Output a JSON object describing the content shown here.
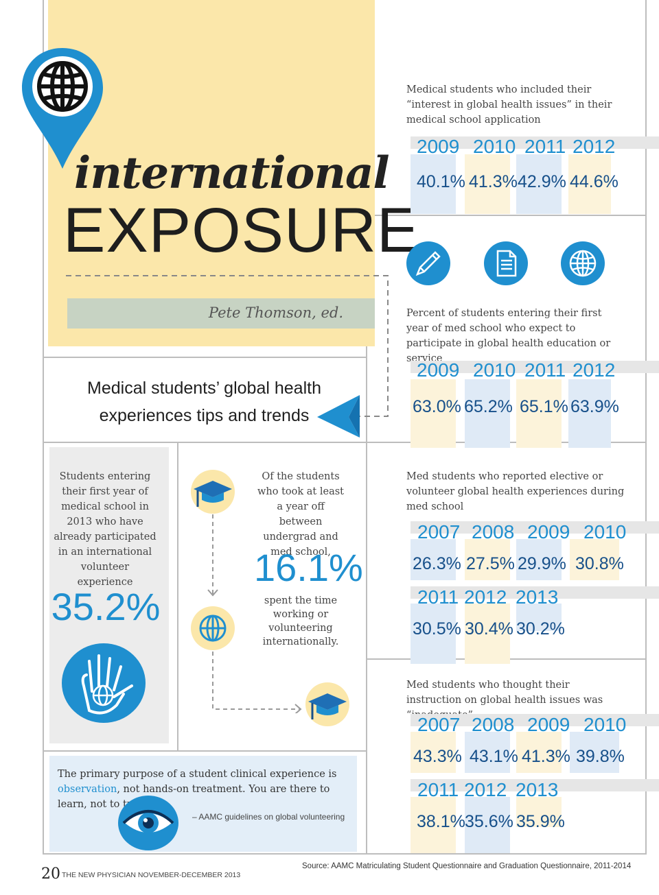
{
  "colors": {
    "accent_blue": "#1f8fcf",
    "value_navy": "#17508a",
    "panel_yellow": "#fbe7aa",
    "editor_green": "#c7d3c3",
    "quote_blue": "#e3eef8"
  },
  "header": {
    "title_script": "international",
    "title_main": "EXPOSURE",
    "editor": "Pete Thomson, ed.",
    "subtitle_line1": "Medical students’ global health",
    "subtitle_line2": "experiences tips and trends",
    "marker_icon": "globe-icon"
  },
  "stats": [
    {
      "description": "Medical students who included their “interest in global health issues” in their medical school application",
      "rows": [
        {
          "years": [
            "2009",
            "2010",
            "2011",
            "2012"
          ],
          "values": [
            "40.1%",
            "41.3%",
            "42.9%",
            "44.6%"
          ]
        }
      ]
    },
    {
      "description": "Percent of students entering their first year of med school who expect to participate in global health education or service",
      "rows": [
        {
          "years": [
            "2009",
            "2010",
            "2011",
            "2012"
          ],
          "values": [
            "63.0%",
            "65.2%",
            "65.1%",
            "63.9%"
          ]
        }
      ]
    },
    {
      "description": "Med students who reported elective or volunteer global health experiences during med school",
      "rows": [
        {
          "years": [
            "2007",
            "2008",
            "2009",
            "2010"
          ],
          "values": [
            "26.3%",
            "27.5%",
            "29.9%",
            "30.8%"
          ]
        },
        {
          "years": [
            "2011",
            "2012",
            "2013"
          ],
          "values": [
            "30.5%",
            "30.4%",
            "30.2%"
          ]
        }
      ]
    },
    {
      "description": "Med students who thought their instruction on global health issues was “inadequate”",
      "rows": [
        {
          "years": [
            "2007",
            "2008",
            "2009",
            "2010"
          ],
          "values": [
            "43.3%",
            "43.1%",
            "41.3%",
            "39.8%"
          ]
        },
        {
          "years": [
            "2011",
            "2012",
            "2013"
          ],
          "values": [
            "38.1%",
            "35.6%",
            "35.9%"
          ]
        }
      ]
    }
  ],
  "icons_row": [
    "pencil-icon",
    "document-icon",
    "globe-icon"
  ],
  "left_stat": {
    "text": "Students entering their first year of medical school in 2013 who have already participated in an international volunteer experience",
    "value": "35.2%",
    "icon": "hand-globe-icon"
  },
  "mid_stat": {
    "text_top": "Of the students who took at least a year off between undergrad and med school,",
    "value": "16.1%",
    "text_bottom": "spent the time working or volunteering internationally.",
    "icons": [
      "graduation-cap-icon",
      "globe-icon",
      "graduation-cap-icon"
    ]
  },
  "quote": {
    "pre": "The primary purpose of a student clinical experience is ",
    "highlight": "observation",
    "post": ", not hands-on treatment. You are there to learn, not to treat.",
    "source": "– AAMC guidelines on global volunteering",
    "icon": "eye-icon"
  },
  "footer": {
    "page": "20",
    "magazine": "THE NEW PHYSICIAN NOVEMBER-DECEMBER 2013",
    "source": "Source: AAMC Matriculating Student Questionnaire and Graduation Questionnaire, 2011-2014"
  }
}
